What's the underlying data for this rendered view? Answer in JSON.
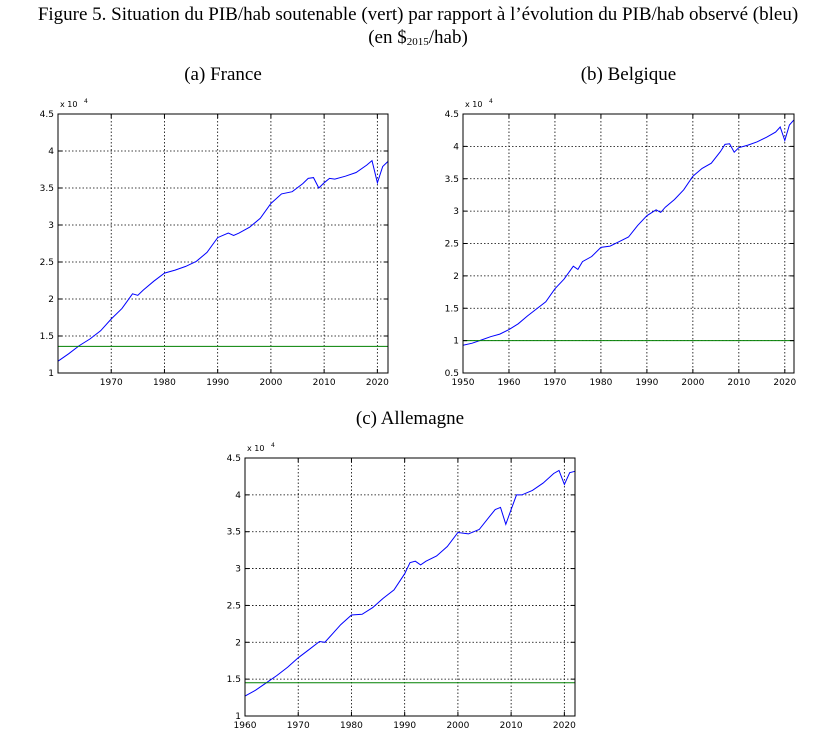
{
  "figure": {
    "title_line1": "Figure 5. Situation du PIB/hab soutenable (vert) par rapport à l’évolution du PIB/hab observé (bleu)",
    "title_line2_pre": "(en $",
    "title_line2_sub": "2015",
    "title_line2_post": "/hab)"
  },
  "colors": {
    "observed": "#0000ff",
    "sustainable": "#008000",
    "grid": "#000000"
  },
  "chart_data": [
    {
      "type": "line",
      "title": "(a) France",
      "multiplier_label": "x 10",
      "multiplier_exp": "4",
      "xlim": [
        1960,
        2022
      ],
      "ylim": [
        1,
        4.5
      ],
      "xticks": [
        1970,
        1980,
        1990,
        2000,
        2010,
        2020
      ],
      "yticks": [
        1,
        1.5,
        2,
        2.5,
        3,
        3.5,
        4,
        4.5
      ],
      "xticklabels": [
        "1970",
        "1980",
        "1990",
        "2000",
        "2010",
        "2020"
      ],
      "yticklabels": [
        "1",
        "1.5",
        "2",
        "2.5",
        "3",
        "3.5",
        "4",
        "4.5"
      ],
      "grid": true,
      "series": [
        {
          "color": "observed",
          "x": [
            1960,
            1962,
            1964,
            1966,
            1968,
            1970,
            1972,
            1974,
            1975,
            1976,
            1978,
            1980,
            1982,
            1984,
            1986,
            1988,
            1990,
            1992,
            1993,
            1994,
            1996,
            1998,
            2000,
            2002,
            2004,
            2006,
            2007,
            2008,
            2009,
            2010,
            2011,
            2012,
            2014,
            2016,
            2018,
            2019,
            2020,
            2021,
            2022
          ],
          "y": [
            1.16,
            1.26,
            1.37,
            1.46,
            1.57,
            1.73,
            1.87,
            2.07,
            2.05,
            2.12,
            2.24,
            2.35,
            2.39,
            2.44,
            2.51,
            2.63,
            2.83,
            2.89,
            2.86,
            2.89,
            2.97,
            3.09,
            3.29,
            3.42,
            3.45,
            3.56,
            3.63,
            3.64,
            3.5,
            3.57,
            3.63,
            3.62,
            3.66,
            3.71,
            3.81,
            3.87,
            3.57,
            3.79,
            3.86
          ]
        },
        {
          "color": "sustainable",
          "x": [
            1960,
            2022
          ],
          "y": [
            1.36,
            1.36
          ]
        }
      ]
    },
    {
      "type": "line",
      "title": "(b) Belgique",
      "multiplier_label": "x 10",
      "multiplier_exp": "4",
      "xlim": [
        1950,
        2022
      ],
      "ylim": [
        0.5,
        4.5
      ],
      "xticks": [
        1950,
        1960,
        1970,
        1980,
        1990,
        2000,
        2010,
        2020
      ],
      "yticks": [
        0.5,
        1,
        1.5,
        2,
        2.5,
        3,
        3.5,
        4,
        4.5
      ],
      "xticklabels": [
        "1950",
        "1960",
        "1970",
        "1980",
        "1990",
        "2000",
        "2010",
        "2020"
      ],
      "yticklabels": [
        "0.5",
        "1",
        "1.5",
        "2",
        "2.5",
        "3",
        "3.5",
        "4",
        "4.5"
      ],
      "grid": true,
      "series": [
        {
          "color": "observed",
          "x": [
            1950,
            1952,
            1954,
            1956,
            1958,
            1960,
            1962,
            1964,
            1966,
            1968,
            1970,
            1972,
            1974,
            1975,
            1976,
            1978,
            1980,
            1982,
            1984,
            1986,
            1988,
            1990,
            1992,
            1993,
            1994,
            1996,
            1998,
            2000,
            2002,
            2004,
            2006,
            2007,
            2008,
            2009,
            2010,
            2012,
            2014,
            2016,
            2018,
            2019,
            2020,
            2021,
            2022
          ],
          "y": [
            0.93,
            0.96,
            1.01,
            1.06,
            1.1,
            1.17,
            1.26,
            1.38,
            1.49,
            1.6,
            1.8,
            1.95,
            2.15,
            2.1,
            2.22,
            2.3,
            2.44,
            2.46,
            2.53,
            2.6,
            2.78,
            2.93,
            3.02,
            2.98,
            3.06,
            3.18,
            3.33,
            3.54,
            3.66,
            3.74,
            3.92,
            4.03,
            4.04,
            3.91,
            3.98,
            4.02,
            4.07,
            4.14,
            4.22,
            4.3,
            4.09,
            4.33,
            4.41
          ]
        },
        {
          "color": "sustainable",
          "x": [
            1950,
            2022
          ],
          "y": [
            1.0,
            1.0
          ]
        }
      ]
    },
    {
      "type": "line",
      "title": "(c) Allemagne",
      "multiplier_label": "x 10",
      "multiplier_exp": "4",
      "xlim": [
        1960,
        2022
      ],
      "ylim": [
        1,
        4.5
      ],
      "xticks": [
        1960,
        1970,
        1980,
        1990,
        2000,
        2010,
        2020
      ],
      "yticks": [
        1,
        1.5,
        2,
        2.5,
        3,
        3.5,
        4,
        4.5
      ],
      "xticklabels": [
        "1960",
        "1970",
        "1980",
        "1990",
        "2000",
        "2010",
        "2020"
      ],
      "yticklabels": [
        "1",
        "1.5",
        "2",
        "2.5",
        "3",
        "3.5",
        "4",
        "4.5"
      ],
      "grid": true,
      "series": [
        {
          "color": "observed",
          "x": [
            1960,
            1962,
            1964,
            1966,
            1968,
            1970,
            1972,
            1974,
            1975,
            1976,
            1978,
            1980,
            1982,
            1984,
            1986,
            1988,
            1990,
            1991,
            1992,
            1993,
            1994,
            1996,
            1998,
            2000,
            2002,
            2004,
            2006,
            2007,
            2008,
            2009,
            2010,
            2011,
            2012,
            2014,
            2016,
            2018,
            2019,
            2020,
            2021,
            2022
          ],
          "y": [
            1.27,
            1.35,
            1.45,
            1.55,
            1.66,
            1.79,
            1.9,
            2.01,
            2.0,
            2.08,
            2.24,
            2.37,
            2.38,
            2.47,
            2.6,
            2.71,
            2.93,
            3.08,
            3.1,
            3.05,
            3.1,
            3.17,
            3.3,
            3.49,
            3.47,
            3.53,
            3.71,
            3.8,
            3.83,
            3.6,
            3.8,
            4.0,
            4.0,
            4.06,
            4.16,
            4.29,
            4.33,
            4.14,
            4.3,
            4.32
          ]
        },
        {
          "color": "sustainable",
          "x": [
            1960,
            2022
          ],
          "y": [
            1.45,
            1.45
          ]
        }
      ]
    }
  ]
}
